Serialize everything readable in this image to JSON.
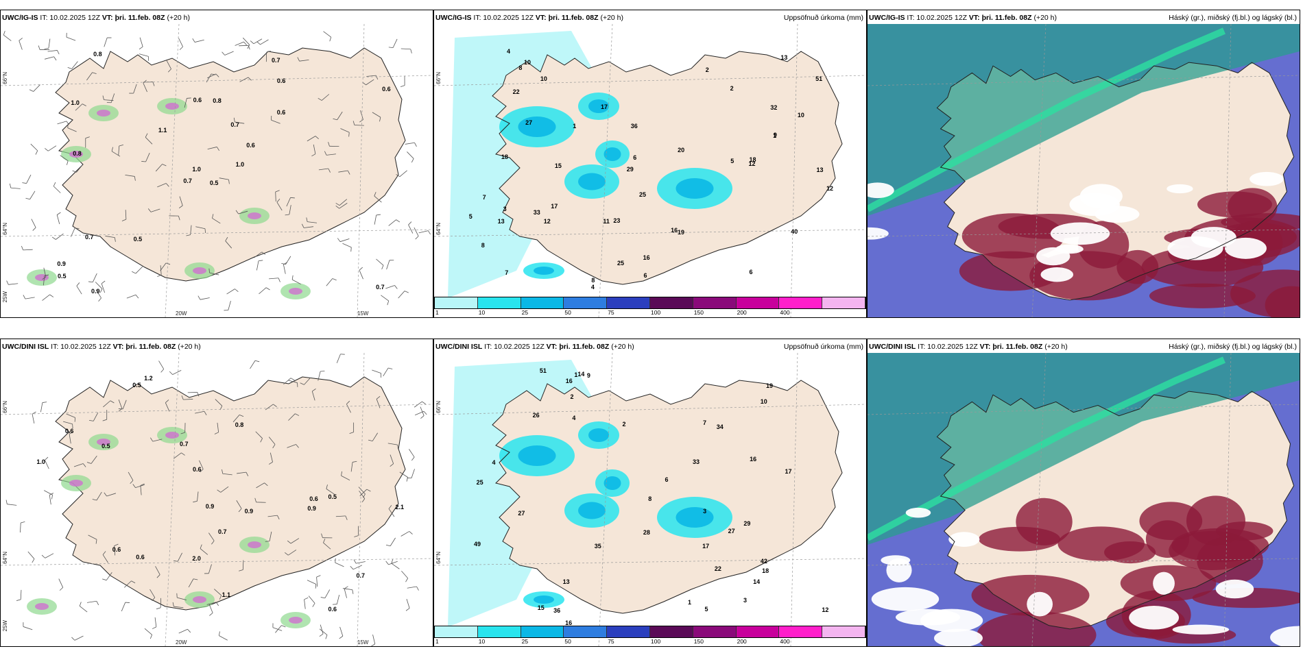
{
  "colors": {
    "land": "#f5e6d8",
    "green": "#8fd88f",
    "dark_green": "#1f6b2a",
    "magenta": "#d070d0",
    "precip": [
      "#ffffff",
      "#b8f6f8",
      "#29e4ee",
      "#0bb8e6",
      "#2e7de0",
      "#2b3fbe",
      "#5a0a57",
      "#8a0a7a",
      "#c8009c",
      "#ff1fcb",
      "#f4b5f0"
    ],
    "cloud_high": "#2a9d8f",
    "cloud_mid": "#4a55c8",
    "cloud_low": "#8c1a3a"
  },
  "panels": [
    {
      "title_model": "UWC/IG-IS",
      "title_it": "IT: 10.02.2025 12Z",
      "title_vt_label": "VT:",
      "title_vt": "þri. 11.feb. 08Z",
      "title_lead": "(+20 h)",
      "right": "",
      "numbers": [
        "0.5",
        "1.0",
        "1.0",
        "0.9",
        "0.6",
        "0.5",
        "0.7",
        "0.8",
        "0.6",
        "1.0",
        "0.8",
        "0.7",
        "0.8",
        "0.6",
        "0.7",
        "0.6",
        "0.9",
        "0.6",
        "0.7",
        "0.7",
        "1.1",
        "0.5"
      ]
    },
    {
      "title_model": "UWC/IG-IS",
      "title_it": "IT: 10.02.2025 12Z",
      "title_vt_label": "VT:",
      "title_vt": "þri. 11.feb. 08Z",
      "title_lead": "(+20 h)",
      "right": "Uppsöfnuð úrkoma (mm)",
      "numbers": [
        "5",
        "6",
        "18",
        "25",
        "16",
        "17",
        "29",
        "33",
        "23",
        "13",
        "12",
        "10",
        "8",
        "10",
        "7",
        "51",
        "19",
        "36",
        "18",
        "20",
        "16",
        "22",
        "17",
        "12",
        "11",
        "40",
        "25",
        "27",
        "13",
        "32",
        "9",
        "6",
        "4",
        "2",
        "3",
        "1",
        "8",
        "7",
        "5",
        "6",
        "2",
        "1",
        "12",
        "15",
        "13",
        "8",
        "10",
        "4"
      ]
    },
    {
      "title_model": "UWC/IG-IS",
      "title_it": "IT: 10.02.2025 12Z",
      "title_vt_label": "VT:",
      "title_vt": "þri. 11.feb. 08Z",
      "title_lead": "(+20 h)",
      "right": "Háský (gr.), miðský (fj.bl.) og lágský (bl.)",
      "numbers": []
    },
    {
      "title_model": "UWC/DINI ISL",
      "title_it": "IT: 10.02.2025 12Z",
      "title_vt_label": "VT:",
      "title_vt": "þri. 11.feb. 08Z",
      "title_lead": "(+20 h)",
      "right": "",
      "numbers": [
        "0.5",
        "0.6",
        "0.6",
        "0.5",
        "0.6",
        "0.8",
        "1.0",
        "0.9",
        "0.7",
        "0.9",
        "1.2",
        "0.6",
        "0.6",
        "0.5",
        "0.7",
        "1.1",
        "0.7",
        "0.9",
        "0.6",
        "2.0",
        "2.1"
      ]
    },
    {
      "title_model": "UWC/DINI ISL",
      "title_it": "IT: 10.02.2025 12Z",
      "title_vt_label": "VT:",
      "title_vt": "þri. 11.feb. 08Z",
      "title_lead": "(+20 h)",
      "right": "Uppsöfnuð úrkoma (mm)",
      "numbers": [
        "2",
        "3",
        "16",
        "22",
        "26",
        "17",
        "18",
        "16",
        "33",
        "27",
        "35",
        "49",
        "25",
        "29",
        "51",
        "42",
        "19",
        "28",
        "14",
        "17",
        "15",
        "14",
        "36",
        "34",
        "27",
        "16",
        "13",
        "9",
        "1",
        "2",
        "8",
        "7",
        "4",
        "6",
        "5",
        "12",
        "10",
        "3",
        "4",
        "1"
      ]
    },
    {
      "title_model": "UWC/DINI ISL",
      "title_it": "IT: 10.02.2025 12Z",
      "title_vt_label": "VT:",
      "title_vt": "þri. 11.feb. 08Z",
      "title_lead": "(+20 h)",
      "right": "Háský (gr.), miðský (fj.bl.) og lágský (bl.)",
      "numbers": []
    }
  ],
  "axis_labels": {
    "lat66": "66°N",
    "lat64": "64°N",
    "lon20": "20W",
    "lon15": "15W",
    "lon25": "25W"
  },
  "colorbar": {
    "ticks": [
      "1",
      "10",
      "25",
      "50",
      "75",
      "100",
      "150",
      "200",
      "400"
    ]
  }
}
